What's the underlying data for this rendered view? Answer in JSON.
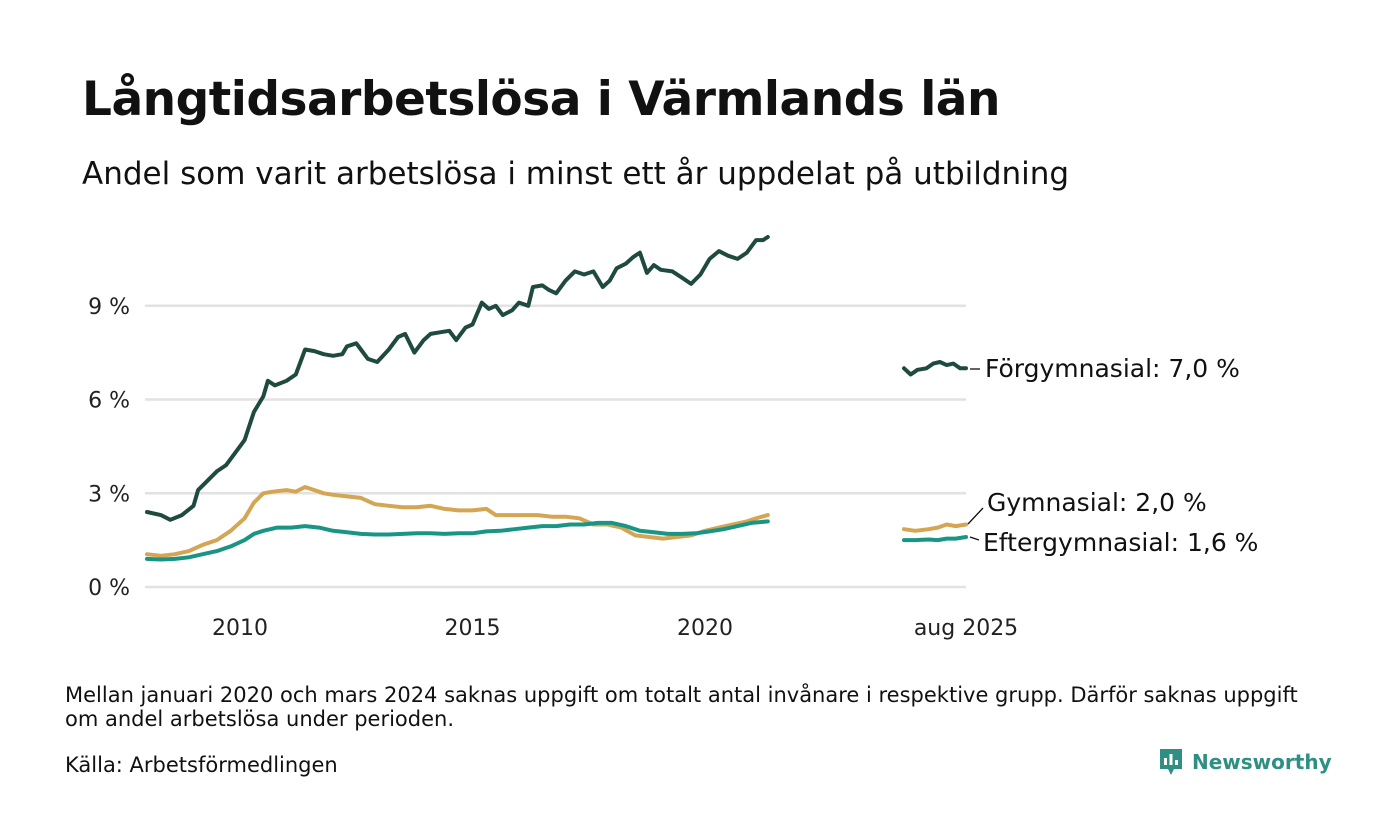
{
  "header": {
    "title": "Långtidsarbetslösa i Värmlands län",
    "subtitle": "Andel som varit arbetslösa i minst ett år uppdelat på utbildning"
  },
  "footer": {
    "note": "Mellan januari 2020 och mars 2024 saknas uppgift om totalt antal invånare i respektive grupp. Därför saknas uppgift om andel arbetslösa under perioden.",
    "source": "Källa: Arbetsförmedlingen",
    "brand": "Newsworthy"
  },
  "colors": {
    "forgymnasial": "#1f4a40",
    "gymnasial": "#d4a553",
    "eftergymnasial": "#1a9585",
    "grid": "#e2e2e2",
    "brand": "#2f8f83"
  },
  "icons": {
    "brand_logo": "newsworthy-logo-icon"
  },
  "chart_data": {
    "type": "line",
    "ylim": [
      0,
      12
    ],
    "y_ticks": [
      0,
      3,
      6,
      9
    ],
    "y_tick_labels": [
      "0 %",
      "3 %",
      "6 %",
      "9 %"
    ],
    "x_ticks": [
      2010,
      2015,
      2020,
      2025.63
    ],
    "x_tick_labels": [
      "2010",
      "2015",
      "2020",
      "aug 2025"
    ],
    "grid": "horizontal",
    "gap": {
      "from": 2020.0,
      "to": 2024.25
    },
    "series": [
      {
        "key": "forgymnasial",
        "label": "Förgymnasial: 7,0 %",
        "segments": [
          [
            [
              2008.0,
              2.4
            ],
            [
              2008.3,
              2.3
            ],
            [
              2008.5,
              2.15
            ],
            [
              2008.75,
              2.3
            ],
            [
              2009.0,
              2.6
            ],
            [
              2009.1,
              3.1
            ],
            [
              2009.3,
              3.4
            ],
            [
              2009.5,
              3.7
            ],
            [
              2009.7,
              3.9
            ],
            [
              2009.85,
              4.2
            ],
            [
              2010.1,
              4.7
            ],
            [
              2010.3,
              5.6
            ],
            [
              2010.5,
              6.1
            ],
            [
              2010.6,
              6.6
            ],
            [
              2010.75,
              6.45
            ],
            [
              2011.0,
              6.6
            ],
            [
              2011.2,
              6.8
            ],
            [
              2011.4,
              7.6
            ],
            [
              2011.6,
              7.55
            ],
            [
              2011.8,
              7.45
            ],
            [
              2012.0,
              7.4
            ],
            [
              2012.2,
              7.45
            ],
            [
              2012.3,
              7.7
            ],
            [
              2012.5,
              7.8
            ],
            [
              2012.6,
              7.6
            ],
            [
              2012.75,
              7.3
            ],
            [
              2012.95,
              7.2
            ],
            [
              2013.2,
              7.6
            ],
            [
              2013.4,
              8.0
            ],
            [
              2013.55,
              8.1
            ],
            [
              2013.75,
              7.5
            ],
            [
              2013.95,
              7.9
            ],
            [
              2014.1,
              8.1
            ],
            [
              2014.3,
              8.15
            ],
            [
              2014.5,
              8.2
            ],
            [
              2014.65,
              7.9
            ],
            [
              2014.85,
              8.3
            ],
            [
              2015.0,
              8.4
            ],
            [
              2015.2,
              9.1
            ],
            [
              2015.35,
              8.9
            ],
            [
              2015.5,
              9.0
            ],
            [
              2015.65,
              8.7
            ],
            [
              2015.85,
              8.85
            ],
            [
              2016.0,
              9.1
            ],
            [
              2016.2,
              9.0
            ],
            [
              2016.3,
              9.6
            ],
            [
              2016.5,
              9.65
            ],
            [
              2016.65,
              9.5
            ],
            [
              2016.8,
              9.4
            ],
            [
              2017.0,
              9.8
            ],
            [
              2017.2,
              10.1
            ],
            [
              2017.4,
              10.0
            ],
            [
              2017.6,
              10.1
            ],
            [
              2017.8,
              9.6
            ],
            [
              2017.95,
              9.8
            ],
            [
              2018.1,
              10.2
            ],
            [
              2018.3,
              10.35
            ],
            [
              2018.45,
              10.55
            ],
            [
              2018.6,
              10.7
            ],
            [
              2018.75,
              10.05
            ],
            [
              2018.9,
              10.3
            ],
            [
              2019.05,
              10.15
            ],
            [
              2019.3,
              10.1
            ],
            [
              2019.5,
              9.9
            ],
            [
              2019.7,
              9.7
            ],
            [
              2019.9,
              10.0
            ],
            [
              2020.1,
              10.5
            ],
            [
              2020.3,
              10.75
            ],
            [
              2020.5,
              10.6
            ],
            [
              2020.7,
              10.5
            ],
            [
              2020.9,
              10.7
            ],
            [
              2021.1,
              11.1
            ],
            [
              2021.25,
              11.1
            ],
            [
              2021.35,
              11.2
            ]
          ],
          [
            [
              2024.25,
              7.0
            ],
            [
              2024.4,
              6.8
            ],
            [
              2024.55,
              6.95
            ],
            [
              2024.75,
              7.0
            ],
            [
              2024.9,
              7.15
            ],
            [
              2025.05,
              7.2
            ],
            [
              2025.2,
              7.1
            ],
            [
              2025.35,
              7.15
            ],
            [
              2025.5,
              7.0
            ],
            [
              2025.63,
              7.0
            ]
          ]
        ]
      },
      {
        "key": "gymnasial",
        "label": "Gymnasial: 2,0 %",
        "segments": [
          [
            [
              2008.0,
              1.05
            ],
            [
              2008.3,
              1.0
            ],
            [
              2008.6,
              1.05
            ],
            [
              2008.9,
              1.15
            ],
            [
              2009.2,
              1.35
            ],
            [
              2009.5,
              1.5
            ],
            [
              2009.8,
              1.8
            ],
            [
              2010.1,
              2.2
            ],
            [
              2010.3,
              2.7
            ],
            [
              2010.5,
              3.0
            ],
            [
              2010.7,
              3.05
            ],
            [
              2011.0,
              3.1
            ],
            [
              2011.2,
              3.05
            ],
            [
              2011.4,
              3.2
            ],
            [
              2011.6,
              3.1
            ],
            [
              2011.8,
              3.0
            ],
            [
              2012.0,
              2.95
            ],
            [
              2012.3,
              2.9
            ],
            [
              2012.6,
              2.85
            ],
            [
              2012.9,
              2.65
            ],
            [
              2013.2,
              2.6
            ],
            [
              2013.5,
              2.55
            ],
            [
              2013.8,
              2.55
            ],
            [
              2014.1,
              2.6
            ],
            [
              2014.4,
              2.5
            ],
            [
              2014.7,
              2.45
            ],
            [
              2015.0,
              2.45
            ],
            [
              2015.3,
              2.5
            ],
            [
              2015.5,
              2.3
            ],
            [
              2015.8,
              2.3
            ],
            [
              2016.1,
              2.3
            ],
            [
              2016.4,
              2.3
            ],
            [
              2016.7,
              2.25
            ],
            [
              2017.0,
              2.25
            ],
            [
              2017.3,
              2.2
            ],
            [
              2017.6,
              2.0
            ],
            [
              2017.9,
              2.0
            ],
            [
              2018.2,
              1.9
            ],
            [
              2018.5,
              1.65
            ],
            [
              2018.8,
              1.6
            ],
            [
              2019.1,
              1.55
            ],
            [
              2019.4,
              1.6
            ],
            [
              2019.7,
              1.65
            ],
            [
              2020.0,
              1.8
            ],
            [
              2020.3,
              1.9
            ],
            [
              2020.6,
              2.0
            ],
            [
              2020.9,
              2.1
            ],
            [
              2021.1,
              2.2
            ],
            [
              2021.35,
              2.3
            ]
          ],
          [
            [
              2024.25,
              1.85
            ],
            [
              2024.5,
              1.8
            ],
            [
              2024.8,
              1.85
            ],
            [
              2025.0,
              1.9
            ],
            [
              2025.2,
              2.0
            ],
            [
              2025.4,
              1.95
            ],
            [
              2025.63,
              2.0
            ]
          ]
        ]
      },
      {
        "key": "eftergymnasial",
        "label": "Eftergymnasial: 1,6 %",
        "segments": [
          [
            [
              2008.0,
              0.9
            ],
            [
              2008.3,
              0.88
            ],
            [
              2008.6,
              0.9
            ],
            [
              2008.9,
              0.95
            ],
            [
              2009.2,
              1.05
            ],
            [
              2009.5,
              1.15
            ],
            [
              2009.8,
              1.3
            ],
            [
              2010.1,
              1.5
            ],
            [
              2010.3,
              1.7
            ],
            [
              2010.5,
              1.8
            ],
            [
              2010.8,
              1.9
            ],
            [
              2011.1,
              1.9
            ],
            [
              2011.4,
              1.95
            ],
            [
              2011.7,
              1.9
            ],
            [
              2012.0,
              1.8
            ],
            [
              2012.3,
              1.75
            ],
            [
              2012.6,
              1.7
            ],
            [
              2012.9,
              1.68
            ],
            [
              2013.2,
              1.68
            ],
            [
              2013.5,
              1.7
            ],
            [
              2013.8,
              1.72
            ],
            [
              2014.1,
              1.72
            ],
            [
              2014.4,
              1.7
            ],
            [
              2014.7,
              1.72
            ],
            [
              2015.0,
              1.72
            ],
            [
              2015.3,
              1.78
            ],
            [
              2015.6,
              1.8
            ],
            [
              2015.9,
              1.85
            ],
            [
              2016.2,
              1.9
            ],
            [
              2016.5,
              1.95
            ],
            [
              2016.8,
              1.95
            ],
            [
              2017.1,
              2.0
            ],
            [
              2017.4,
              2.0
            ],
            [
              2017.7,
              2.05
            ],
            [
              2018.0,
              2.05
            ],
            [
              2018.3,
              1.95
            ],
            [
              2018.6,
              1.8
            ],
            [
              2018.9,
              1.75
            ],
            [
              2019.2,
              1.7
            ],
            [
              2019.5,
              1.7
            ],
            [
              2019.8,
              1.72
            ],
            [
              2020.1,
              1.78
            ],
            [
              2020.4,
              1.85
            ],
            [
              2020.7,
              1.95
            ],
            [
              2021.0,
              2.05
            ],
            [
              2021.35,
              2.1
            ]
          ],
          [
            [
              2024.25,
              1.5
            ],
            [
              2024.5,
              1.5
            ],
            [
              2024.8,
              1.52
            ],
            [
              2025.0,
              1.5
            ],
            [
              2025.2,
              1.55
            ],
            [
              2025.4,
              1.55
            ],
            [
              2025.63,
              1.6
            ]
          ]
        ]
      }
    ]
  }
}
